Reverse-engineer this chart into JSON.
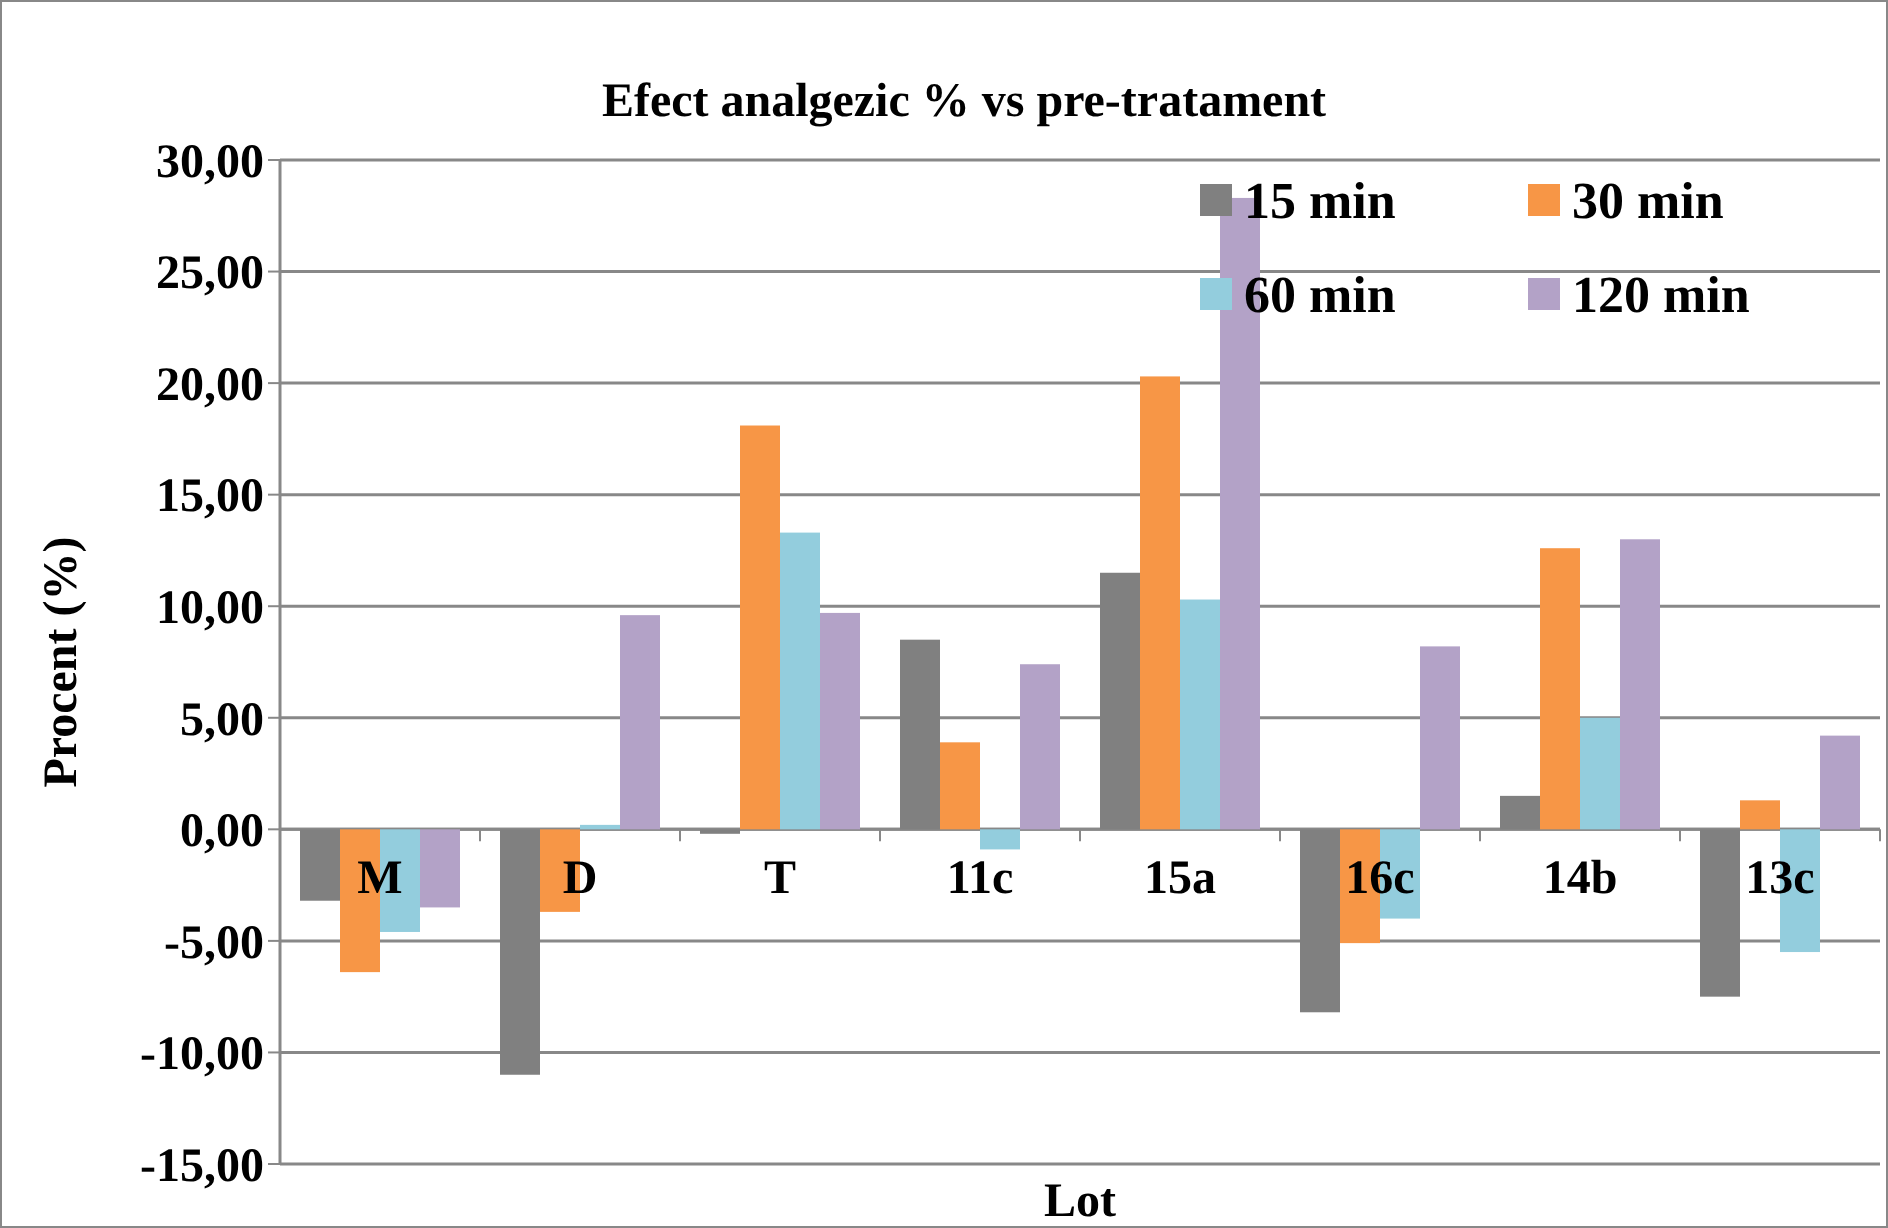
{
  "chart_data": {
    "type": "bar",
    "title": "Efect analgezic % vs pre-tratament",
    "xlabel": "Lot",
    "ylabel": "Procent (%)",
    "categories": [
      "M",
      "D",
      "T",
      "11c",
      "15a",
      "16c",
      "14b",
      "13c"
    ],
    "series": [
      {
        "name": "15 min",
        "color": "#808080",
        "values": [
          -3.2,
          -11.0,
          -0.2,
          8.5,
          11.5,
          -8.2,
          1.5,
          -7.5
        ]
      },
      {
        "name": "30 min",
        "color": "#f79646",
        "values": [
          -6.4,
          -3.7,
          18.1,
          3.9,
          20.3,
          -5.1,
          12.6,
          1.3
        ]
      },
      {
        "name": "60 min",
        "color": "#93cddd",
        "values": [
          -4.6,
          0.2,
          13.3,
          -0.9,
          10.3,
          -4.0,
          5.0,
          -5.5
        ]
      },
      {
        "name": "120 min",
        "color": "#b3a2c7",
        "values": [
          -3.5,
          9.6,
          9.7,
          7.4,
          28.3,
          8.2,
          13.0,
          4.2
        ]
      }
    ],
    "ylim": [
      -15,
      30
    ],
    "yticks": [
      {
        "value": -15,
        "label": "-15,00"
      },
      {
        "value": -10,
        "label": "-10,00"
      },
      {
        "value": -5,
        "label": "-5,00"
      },
      {
        "value": 0,
        "label": "0,00"
      },
      {
        "value": 5,
        "label": "5,00"
      },
      {
        "value": 10,
        "label": "10,00"
      },
      {
        "value": 15,
        "label": "15,00"
      },
      {
        "value": 20,
        "label": "20,00"
      },
      {
        "value": 25,
        "label": "25,00"
      },
      {
        "value": 30,
        "label": "30,00"
      }
    ],
    "grid": "y",
    "legend": "top right"
  }
}
